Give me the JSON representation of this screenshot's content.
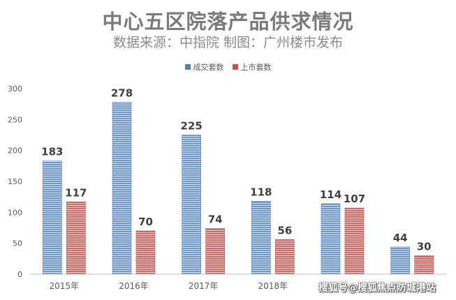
{
  "chart_data": {
    "type": "bar",
    "title": "中心五区院落产品供求情况",
    "subtitle": "数据来源：中指院 制图：广州楼市发布",
    "categories": [
      "2015年",
      "2016年",
      "2017年",
      "2018年",
      "",
      ""
    ],
    "series": [
      {
        "name": "成交套数",
        "values": [
          183,
          278,
          225,
          118,
          114,
          44
        ],
        "color": "#4f81bd"
      },
      {
        "name": "上市套数",
        "values": [
          117,
          70,
          74,
          56,
          107,
          30
        ],
        "color": "#c0504d"
      }
    ],
    "ylim": [
      0,
      300
    ],
    "yticks": [
      0,
      50,
      100,
      150,
      200,
      250,
      300
    ],
    "grid": false,
    "legend_position": "top"
  },
  "watermark": "搜狐号@搜狐焦点防城港站"
}
